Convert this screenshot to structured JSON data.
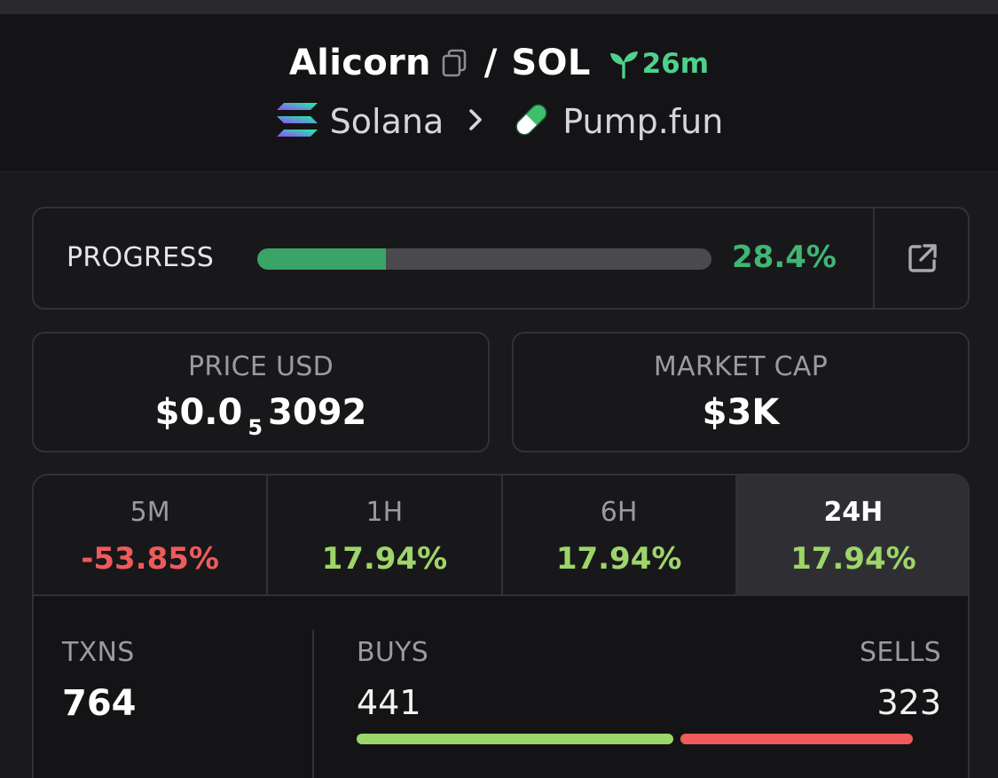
{
  "header": {
    "token": "Alicorn",
    "separator": "/",
    "quote": "SOL",
    "age": "26m",
    "chain": "Solana",
    "dex": "Pump.fun"
  },
  "progress": {
    "label": "PROGRESS",
    "percent_text": "28.4%",
    "percent": 28.4,
    "fill_color": "#3aa366"
  },
  "stats": {
    "price": {
      "label": "PRICE USD",
      "prefix": "$0.0",
      "zeros_subscript": "5",
      "digits": "3092"
    },
    "market_cap": {
      "label": "MARKET CAP",
      "value": "$3K"
    }
  },
  "timeframes": [
    {
      "label": "5M",
      "change": "-53.85%",
      "direction": "negative",
      "active": false
    },
    {
      "label": "1H",
      "change": "17.94%",
      "direction": "positive",
      "active": false
    },
    {
      "label": "6H",
      "change": "17.94%",
      "direction": "positive",
      "active": false
    },
    {
      "label": "24H",
      "change": "17.94%",
      "direction": "positive",
      "active": true
    }
  ],
  "transactions": {
    "txns_label": "TXNS",
    "txns_total": "764",
    "buys_label": "BUYS",
    "buys": "441",
    "sells_label": "SELLS",
    "sells": "323"
  },
  "colors": {
    "positive": "#9ed56a",
    "negative": "#ef5a5a",
    "accent_green": "#4fd18b",
    "background": "#1a1a1d"
  },
  "icons": [
    "copy-icon",
    "sprout-icon",
    "solana-logo-icon",
    "chevron-right-icon",
    "pill-icon",
    "external-link-icon"
  ]
}
